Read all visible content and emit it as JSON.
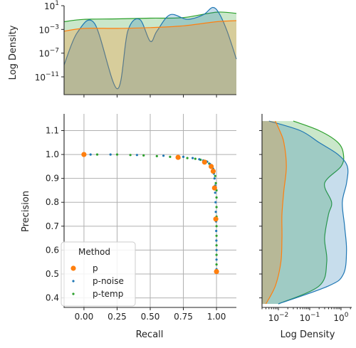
{
  "colors": {
    "p": "#ff7f0e",
    "p-noise": "#1f77b4",
    "p-temp": "#2ca02c"
  },
  "chart_data": [
    {
      "type": "scatter",
      "name": "joint",
      "xlabel": "Recall",
      "ylabel": "Precision",
      "xlim": [
        -0.15,
        1.15
      ],
      "ylim": [
        0.36,
        1.17
      ],
      "xticks": [
        "0.00",
        "0.25",
        "0.50",
        "0.75",
        "1.00"
      ],
      "yticks": [
        "0.4",
        "0.5",
        "0.6",
        "0.7",
        "0.8",
        "0.9",
        "1.0",
        "1.1"
      ],
      "grid": true,
      "legend": {
        "title": "Method",
        "placement": "lower-left",
        "entries": [
          "p",
          "p-noise",
          "p-temp"
        ]
      },
      "series": [
        {
          "name": "p",
          "points": [
            [
              0.0,
              1.0
            ],
            [
              0.71,
              0.988
            ],
            [
              0.91,
              0.968
            ],
            [
              0.96,
              0.95
            ],
            [
              0.975,
              0.93
            ],
            [
              0.985,
              0.86
            ],
            [
              0.995,
              0.73
            ],
            [
              1.0,
              0.51
            ]
          ]
        },
        {
          "name": "p-noise",
          "points": [
            [
              0.05,
              1.0
            ],
            [
              0.2,
              1.0
            ],
            [
              0.4,
              0.998
            ],
            [
              0.6,
              0.995
            ],
            [
              0.75,
              0.99
            ],
            [
              0.82,
              0.985
            ],
            [
              0.87,
              0.98
            ],
            [
              0.9,
              0.975
            ],
            [
              0.93,
              0.97
            ],
            [
              0.95,
              0.96
            ],
            [
              0.965,
              0.95
            ],
            [
              0.975,
              0.94
            ],
            [
              0.98,
              0.92
            ],
            [
              0.985,
              0.9
            ],
            [
              0.99,
              0.87
            ],
            [
              0.99,
              0.84
            ],
            [
              0.993,
              0.8
            ],
            [
              0.995,
              0.76
            ],
            [
              0.997,
              0.72
            ],
            [
              0.998,
              0.68
            ],
            [
              0.999,
              0.64
            ],
            [
              1.0,
              0.6
            ],
            [
              1.0,
              0.56
            ],
            [
              1.0,
              0.52
            ]
          ]
        },
        {
          "name": "p-temp",
          "points": [
            [
              0.1,
              1.0
            ],
            [
              0.25,
              1.0
            ],
            [
              0.35,
              0.998
            ],
            [
              0.45,
              0.996
            ],
            [
              0.55,
              0.993
            ],
            [
              0.65,
              0.99
            ],
            [
              0.72,
              0.985
            ],
            [
              0.78,
              0.985
            ],
            [
              0.84,
              0.982
            ],
            [
              0.88,
              0.978
            ],
            [
              0.92,
              0.972
            ],
            [
              0.945,
              0.962
            ],
            [
              0.96,
              0.955
            ],
            [
              0.97,
              0.945
            ],
            [
              0.98,
              0.93
            ],
            [
              0.99,
              0.91
            ],
            [
              0.995,
              0.88
            ],
            [
              1.0,
              0.85
            ],
            [
              1.0,
              0.82
            ],
            [
              1.0,
              0.78
            ],
            [
              1.0,
              0.74
            ],
            [
              1.0,
              0.7
            ],
            [
              1.0,
              0.66
            ],
            [
              1.0,
              0.62
            ],
            [
              1.0,
              0.58
            ],
            [
              1.0,
              0.54
            ]
          ]
        }
      ]
    },
    {
      "type": "area",
      "name": "top-marginal",
      "ylabel": "Log Density",
      "yscale": "log",
      "ylim": [
        1e-14,
        10
      ],
      "yticks": [
        {
          "exp": 1
        },
        {
          "exp": -3
        },
        {
          "exp": -7
        },
        {
          "exp": -11
        }
      ],
      "series": [
        {
          "name": "p",
          "x": [
            -0.15,
            0.0,
            0.25,
            0.5,
            0.75,
            1.0,
            1.15
          ],
          "y": [
            0.0005,
            0.0015,
            0.0015,
            0.002,
            0.004,
            0.02,
            0.03
          ]
        },
        {
          "name": "p-noise",
          "x": [
            -0.15,
            -0.05,
            0.08,
            0.25,
            0.33,
            0.42,
            0.5,
            0.55,
            0.65,
            0.78,
            0.9,
            0.97,
            1.02,
            1.08,
            1.15
          ],
          "y": [
            1e-09,
            0.0003,
            0.01,
            1e-13,
            0.0005,
            0.05,
            1e-05,
            0.0005,
            0.3,
            0.05,
            0.3,
            5,
            0.5,
            0.0005,
            1e-08
          ]
        },
        {
          "name": "p-temp",
          "x": [
            -0.15,
            0.0,
            0.25,
            0.5,
            0.75,
            1.0,
            1.15
          ],
          "y": [
            0.02,
            0.05,
            0.06,
            0.08,
            0.1,
            0.8,
            0.5
          ]
        }
      ]
    },
    {
      "type": "area",
      "name": "right-marginal",
      "xlabel": "Log Density",
      "xscale": "log",
      "xlim": [
        0.003,
        2.2
      ],
      "xticks": [
        {
          "exp": -2
        },
        {
          "exp": -1
        },
        {
          "exp": 0
        }
      ],
      "series": [
        {
          "name": "p",
          "y": [
            0.375,
            0.45,
            0.55,
            0.65,
            0.75,
            0.85,
            0.95,
            1.05,
            1.1,
            1.14
          ],
          "x": [
            0.004,
            0.008,
            0.012,
            0.013,
            0.013,
            0.015,
            0.018,
            0.015,
            0.011,
            0.008
          ]
        },
        {
          "name": "p-noise",
          "y": [
            0.375,
            0.45,
            0.5,
            0.6,
            0.7,
            0.8,
            0.88,
            0.95,
            1.0,
            1.05,
            1.1,
            1.14
          ],
          "x": [
            0.01,
            0.4,
            1.2,
            1.5,
            1.3,
            1.1,
            1.5,
            1.6,
            0.8,
            0.2,
            0.05,
            0.005
          ]
        },
        {
          "name": "p-temp",
          "y": [
            0.375,
            0.45,
            0.55,
            0.65,
            0.75,
            0.8,
            0.88,
            0.95,
            1.0,
            1.05,
            1.1,
            1.14
          ],
          "x": [
            0.01,
            0.2,
            0.35,
            0.3,
            0.4,
            0.5,
            0.3,
            1.0,
            1.2,
            0.8,
            0.2,
            0.03
          ]
        }
      ]
    }
  ]
}
